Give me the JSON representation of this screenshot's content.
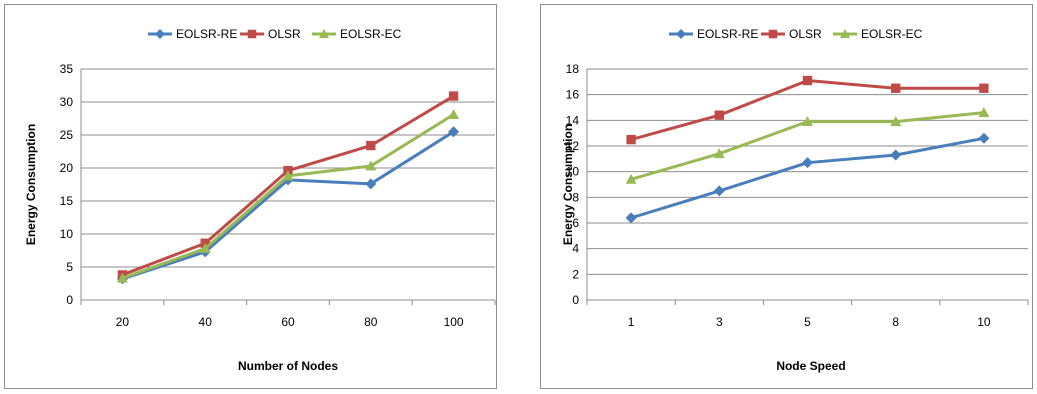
{
  "chart_data": [
    {
      "type": "line",
      "title": "",
      "xlabel": "Number of Nodes",
      "ylabel": "Energy Consumption",
      "categories": [
        "20",
        "40",
        "60",
        "80",
        "100"
      ],
      "ylim": [
        0,
        35
      ],
      "yticks": [
        0,
        5,
        10,
        15,
        20,
        25,
        30,
        35
      ],
      "grid": "horizontal",
      "legend_position": "top",
      "series": [
        {
          "name": "EOLSR-RE",
          "color": "#4a7ebb",
          "marker": "diamond",
          "values": [
            3.2,
            7.3,
            18.2,
            17.6,
            25.5
          ]
        },
        {
          "name": "OLSR",
          "color": "#be4b48",
          "marker": "square",
          "values": [
            3.8,
            8.6,
            19.6,
            23.4,
            30.9
          ]
        },
        {
          "name": "EOLSR-EC",
          "color": "#98b954",
          "marker": "triangle",
          "values": [
            3.3,
            7.8,
            18.8,
            20.3,
            28.1
          ]
        }
      ]
    },
    {
      "type": "line",
      "title": "",
      "xlabel": "Node Speed",
      "ylabel": "Energy Consumption",
      "categories": [
        "1",
        "3",
        "5",
        "8",
        "10"
      ],
      "ylim": [
        0,
        18
      ],
      "yticks": [
        0,
        2,
        4,
        6,
        8,
        10,
        12,
        14,
        16,
        18
      ],
      "grid": "horizontal",
      "legend_position": "top",
      "series": [
        {
          "name": "EOLSR-RE",
          "color": "#4a7ebb",
          "marker": "diamond",
          "values": [
            6.4,
            8.5,
            10.7,
            11.3,
            12.6
          ]
        },
        {
          "name": "OLSR",
          "color": "#be4b48",
          "marker": "square",
          "values": [
            12.5,
            14.4,
            17.1,
            16.5,
            16.5
          ]
        },
        {
          "name": "EOLSR-EC",
          "color": "#98b954",
          "marker": "triangle",
          "values": [
            9.4,
            11.4,
            13.9,
            13.9,
            14.6
          ]
        }
      ]
    }
  ]
}
